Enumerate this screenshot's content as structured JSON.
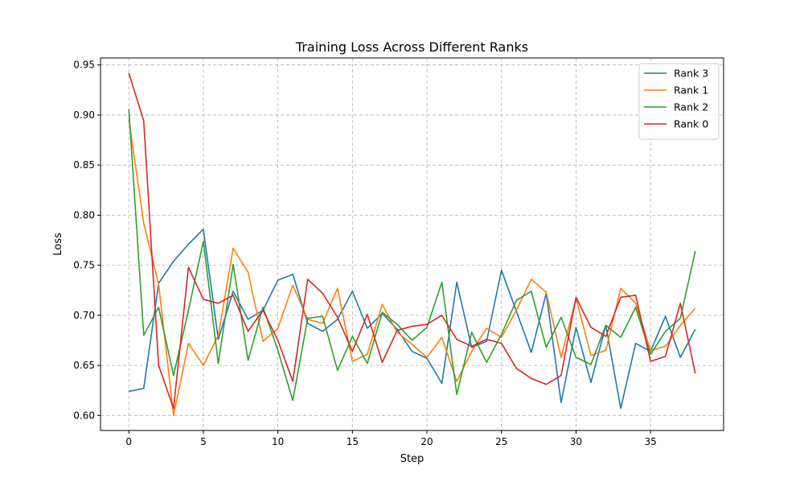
{
  "chart_data": {
    "type": "line",
    "title": "Training Loss Across Different Ranks",
    "xlabel": "Step",
    "ylabel": "Loss",
    "xlim": [
      -1.9,
      39.9
    ],
    "ylim": [
      0.585,
      0.957
    ],
    "xticks": [
      0,
      5,
      10,
      15,
      20,
      25,
      30,
      35
    ],
    "yticks": [
      0.6,
      0.65,
      0.7,
      0.75,
      0.8,
      0.85,
      0.9,
      0.95
    ],
    "ytick_labels": [
      "0.60",
      "0.65",
      "0.70",
      "0.75",
      "0.80",
      "0.85",
      "0.90",
      "0.95"
    ],
    "grid": true,
    "legend_position": "top-right",
    "x": [
      0,
      1,
      2,
      3,
      4,
      5,
      6,
      7,
      8,
      9,
      10,
      11,
      12,
      13,
      14,
      15,
      16,
      17,
      18,
      19,
      20,
      21,
      22,
      23,
      24,
      25,
      26,
      27,
      28,
      29,
      30,
      31,
      32,
      33,
      34,
      35,
      36,
      37,
      38
    ],
    "series": [
      {
        "name": "Rank 3",
        "color": "#1f77b4",
        "values": [
          0.624,
          0.627,
          0.732,
          0.754,
          0.771,
          0.786,
          0.676,
          0.724,
          0.696,
          0.705,
          0.735,
          0.741,
          0.692,
          0.684,
          0.696,
          0.724,
          0.687,
          0.702,
          0.686,
          0.664,
          0.657,
          0.632,
          0.733,
          0.668,
          0.674,
          0.745,
          0.704,
          0.663,
          0.722,
          0.613,
          0.688,
          0.633,
          0.69,
          0.607,
          0.672,
          0.664,
          0.699,
          0.658,
          0.686
        ]
      },
      {
        "name": "Rank 1",
        "color": "#ff7f0e",
        "values": [
          0.896,
          0.792,
          0.731,
          0.6,
          0.672,
          0.65,
          0.68,
          0.767,
          0.743,
          0.674,
          0.687,
          0.73,
          0.696,
          0.692,
          0.727,
          0.654,
          0.661,
          0.711,
          0.683,
          0.671,
          0.658,
          0.678,
          0.634,
          0.664,
          0.687,
          0.678,
          0.705,
          0.736,
          0.723,
          0.658,
          0.717,
          0.66,
          0.665,
          0.727,
          0.712,
          0.665,
          0.669,
          0.69,
          0.707
        ]
      },
      {
        "name": "Rank 2",
        "color": "#2ca02c",
        "values": [
          0.906,
          0.68,
          0.708,
          0.64,
          0.705,
          0.774,
          0.652,
          0.751,
          0.655,
          0.708,
          0.665,
          0.615,
          0.697,
          0.699,
          0.645,
          0.679,
          0.652,
          0.703,
          0.691,
          0.675,
          0.688,
          0.733,
          0.621,
          0.683,
          0.653,
          0.681,
          0.715,
          0.724,
          0.668,
          0.698,
          0.658,
          0.651,
          0.69,
          0.678,
          0.708,
          0.661,
          0.684,
          0.697,
          0.764
        ]
      },
      {
        "name": "Rank 0",
        "color": "#d62728",
        "values": [
          0.942,
          0.894,
          0.65,
          0.607,
          0.748,
          0.716,
          0.712,
          0.72,
          0.684,
          0.705,
          0.675,
          0.634,
          0.736,
          0.722,
          0.698,
          0.664,
          0.701,
          0.653,
          0.685,
          0.689,
          0.691,
          0.7,
          0.676,
          0.669,
          0.676,
          0.672,
          0.647,
          0.637,
          0.631,
          0.64,
          0.718,
          0.688,
          0.679,
          0.718,
          0.72,
          0.654,
          0.659,
          0.712,
          0.642
        ]
      }
    ]
  }
}
